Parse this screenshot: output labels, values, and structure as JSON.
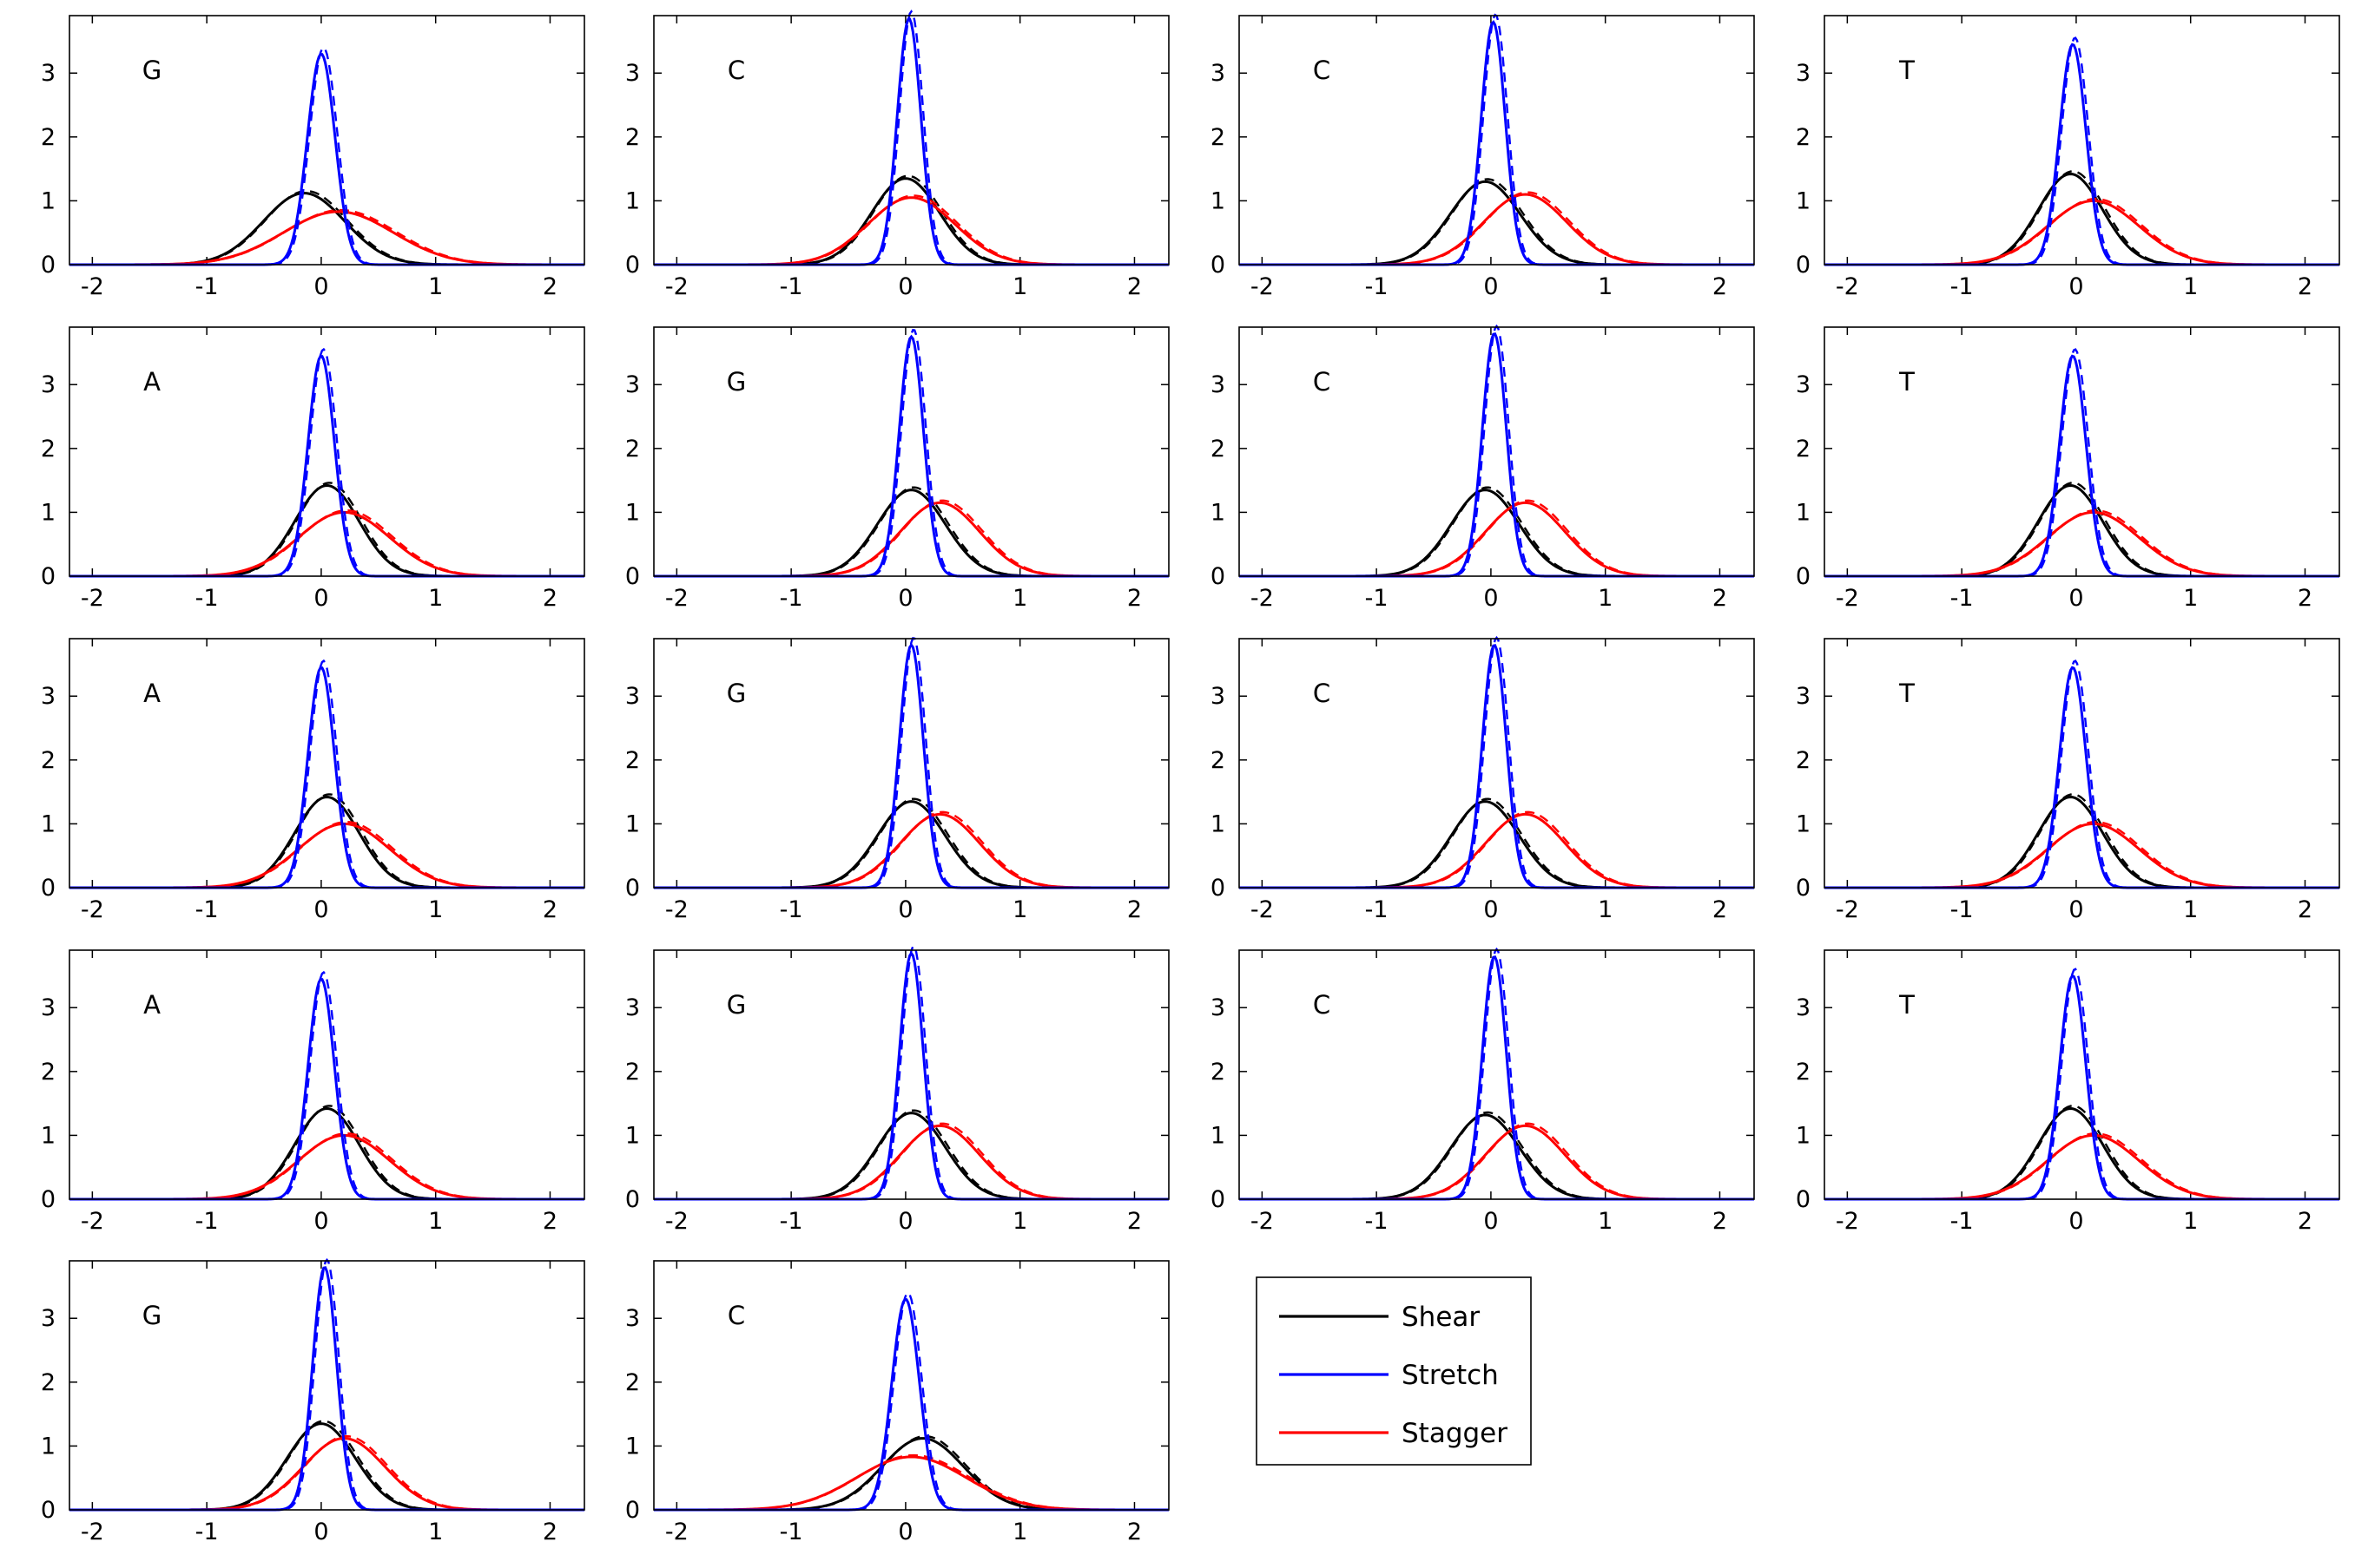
{
  "chart_data": {
    "type": "line",
    "xlim": [
      -2.2,
      2.3
    ],
    "ylim": [
      0,
      3.9
    ],
    "xticks": [
      -2,
      -1,
      0,
      1,
      2
    ],
    "yticks": [
      0,
      1,
      2,
      3
    ],
    "grid": false,
    "legend": {
      "placement": "row-5-column-3",
      "entries": [
        {
          "label": "Shear",
          "color": "#000000"
        },
        {
          "label": "Stretch",
          "color": "#0000ff"
        },
        {
          "label": "Stagger",
          "color": "#ff0000"
        }
      ]
    },
    "series_colors": {
      "shear": "#000000",
      "stretch": "#0000ff",
      "stagger": "#ff0000"
    },
    "panels": [
      {
        "label": "G",
        "shear": {
          "mean": -0.15,
          "peak": 1.12
        },
        "stretch": {
          "mean": 0.0,
          "peak": 3.3
        },
        "stagger": {
          "mean": 0.15,
          "peak": 0.83
        }
      },
      {
        "label": "C",
        "shear": {
          "mean": 0.0,
          "peak": 1.35
        },
        "stretch": {
          "mean": 0.03,
          "peak": 3.85
        },
        "stagger": {
          "mean": 0.05,
          "peak": 1.05
        }
      },
      {
        "label": "C",
        "shear": {
          "mean": -0.05,
          "peak": 1.3
        },
        "stretch": {
          "mean": 0.02,
          "peak": 3.8
        },
        "stagger": {
          "mean": 0.3,
          "peak": 1.1
        }
      },
      {
        "label": "T",
        "shear": {
          "mean": -0.05,
          "peak": 1.42
        },
        "stretch": {
          "mean": -0.03,
          "peak": 3.45
        },
        "stagger": {
          "mean": 0.15,
          "peak": 1.0
        }
      },
      {
        "label": "A",
        "shear": {
          "mean": 0.05,
          "peak": 1.42
        },
        "stretch": {
          "mean": 0.0,
          "peak": 3.45
        },
        "stagger": {
          "mean": 0.2,
          "peak": 1.0
        }
      },
      {
        "label": "G",
        "shear": {
          "mean": 0.05,
          "peak": 1.35
        },
        "stretch": {
          "mean": 0.05,
          "peak": 3.75
        },
        "stagger": {
          "mean": 0.3,
          "peak": 1.15
        }
      },
      {
        "label": "C",
        "shear": {
          "mean": -0.05,
          "peak": 1.35
        },
        "stretch": {
          "mean": 0.03,
          "peak": 3.8
        },
        "stagger": {
          "mean": 0.3,
          "peak": 1.15
        }
      },
      {
        "label": "T",
        "shear": {
          "mean": -0.05,
          "peak": 1.42
        },
        "stretch": {
          "mean": -0.03,
          "peak": 3.45
        },
        "stagger": {
          "mean": 0.15,
          "peak": 1.0
        }
      },
      {
        "label": "A",
        "shear": {
          "mean": 0.05,
          "peak": 1.42
        },
        "stretch": {
          "mean": 0.0,
          "peak": 3.45
        },
        "stagger": {
          "mean": 0.2,
          "peak": 1.0
        }
      },
      {
        "label": "G",
        "shear": {
          "mean": 0.05,
          "peak": 1.35
        },
        "stretch": {
          "mean": 0.05,
          "peak": 3.8
        },
        "stagger": {
          "mean": 0.3,
          "peak": 1.15
        }
      },
      {
        "label": "C",
        "shear": {
          "mean": -0.05,
          "peak": 1.35
        },
        "stretch": {
          "mean": 0.03,
          "peak": 3.8
        },
        "stagger": {
          "mean": 0.3,
          "peak": 1.15
        }
      },
      {
        "label": "T",
        "shear": {
          "mean": -0.05,
          "peak": 1.42
        },
        "stretch": {
          "mean": -0.03,
          "peak": 3.45
        },
        "stagger": {
          "mean": 0.15,
          "peak": 1.0
        }
      },
      {
        "label": "A",
        "shear": {
          "mean": 0.05,
          "peak": 1.42
        },
        "stretch": {
          "mean": 0.0,
          "peak": 3.45
        },
        "stagger": {
          "mean": 0.2,
          "peak": 1.0
        }
      },
      {
        "label": "G",
        "shear": {
          "mean": 0.05,
          "peak": 1.35
        },
        "stretch": {
          "mean": 0.05,
          "peak": 3.85
        },
        "stagger": {
          "mean": 0.3,
          "peak": 1.15
        }
      },
      {
        "label": "C",
        "shear": {
          "mean": -0.05,
          "peak": 1.32
        },
        "stretch": {
          "mean": 0.03,
          "peak": 3.8
        },
        "stagger": {
          "mean": 0.3,
          "peak": 1.15
        }
      },
      {
        "label": "T",
        "shear": {
          "mean": -0.05,
          "peak": 1.42
        },
        "stretch": {
          "mean": -0.03,
          "peak": 3.5
        },
        "stagger": {
          "mean": 0.15,
          "peak": 1.0
        }
      },
      {
        "label": "G",
        "shear": {
          "mean": 0.0,
          "peak": 1.35
        },
        "stretch": {
          "mean": 0.03,
          "peak": 3.8
        },
        "stagger": {
          "mean": 0.2,
          "peak": 1.12
        }
      },
      {
        "label": "C",
        "shear": {
          "mean": 0.15,
          "peak": 1.12
        },
        "stretch": {
          "mean": 0.0,
          "peak": 3.3
        },
        "stagger": {
          "mean": 0.05,
          "peak": 0.83
        }
      }
    ]
  }
}
